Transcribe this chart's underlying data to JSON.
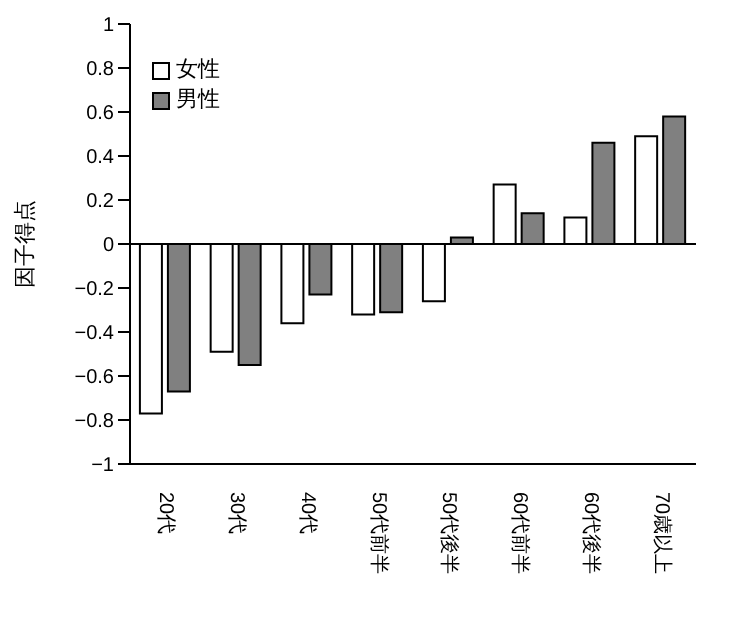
{
  "chart_data": {
    "type": "bar",
    "ylabel": "因子得点",
    "categories": [
      "20代",
      "30代",
      "40代",
      "50代前半",
      "50代後半",
      "60代前半",
      "60代後半",
      "70歳以上"
    ],
    "series": [
      {
        "name": "女性",
        "color": "#ffffff",
        "values": [
          -0.77,
          -0.49,
          -0.36,
          -0.32,
          -0.26,
          0.27,
          0.12,
          0.49
        ]
      },
      {
        "name": "男性",
        "color": "#808080",
        "values": [
          -0.67,
          -0.55,
          -0.23,
          -0.31,
          0.03,
          0.14,
          0.46,
          0.58
        ]
      }
    ],
    "ylim": [
      -1,
      1
    ],
    "yticks": [
      -1,
      -0.8,
      -0.6,
      -0.4,
      -0.2,
      0,
      0.2,
      0.4,
      0.6,
      0.8,
      1
    ],
    "legend": "top left"
  }
}
